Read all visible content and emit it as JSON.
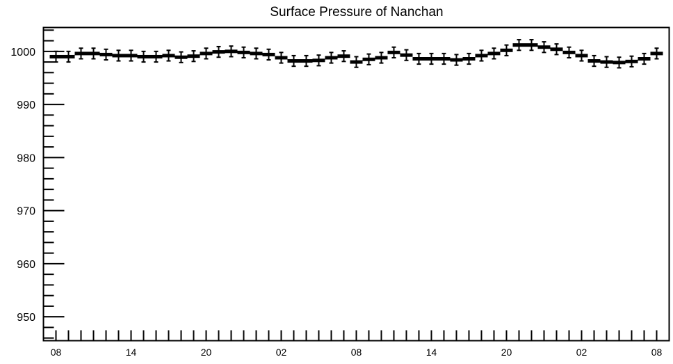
{
  "chart_data": {
    "type": "line",
    "title": "Surface Pressure of Nanchan",
    "xlabel": "",
    "ylabel": "",
    "ylim": [
      945.5,
      1004.5
    ],
    "yticks": [
      950,
      960,
      970,
      980,
      990,
      1000
    ],
    "ytick_labels": [
      "950",
      "960",
      "970",
      "980",
      "990",
      "1000"
    ],
    "xtick_labels": [
      "08",
      "14",
      "20",
      "02",
      "08",
      "14",
      "20",
      "02",
      "08"
    ],
    "grid": false,
    "legend": "none",
    "marker_style": "horizontal bar with vertical error bars",
    "error": 1.0,
    "series": [
      {
        "values": [
          999.0,
          999.0,
          999.6,
          999.6,
          999.4,
          999.2,
          999.2,
          999.0,
          999.0,
          999.2,
          998.9,
          999.1,
          999.6,
          999.9,
          1000.0,
          999.8,
          999.6,
          999.4,
          998.8,
          998.2,
          998.2,
          998.3,
          998.8,
          999.1,
          998.0,
          998.5,
          998.8,
          999.8,
          999.3,
          998.6,
          998.6,
          998.6,
          998.4,
          998.6,
          999.2,
          999.6,
          1000.2,
          1001.2,
          1001.2,
          1000.8,
          1000.4,
          999.8,
          999.2,
          998.2,
          998.0,
          997.9,
          998.1,
          998.6,
          999.6
        ]
      }
    ]
  }
}
